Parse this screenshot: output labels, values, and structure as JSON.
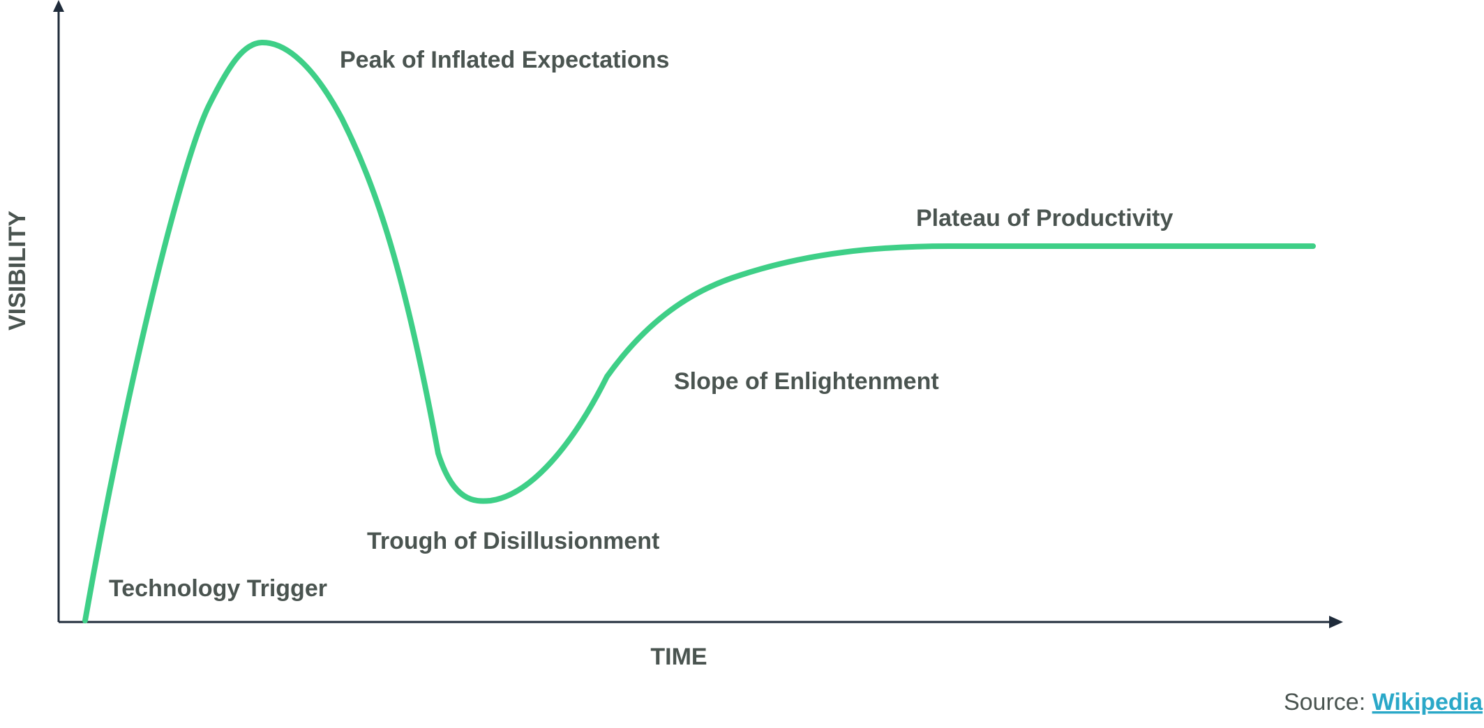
{
  "colors": {
    "curve": "#3ecf87",
    "text": "#4a5450",
    "axis": "#1f2b3a",
    "link": "#2aa8c8"
  },
  "axes": {
    "y_label": "VISIBILITY",
    "x_label": "TIME"
  },
  "phases": {
    "trigger": "Technology Trigger",
    "peak": "Peak of Inflated Expectations",
    "trough": "Trough of Disillusionment",
    "slope": "Slope of Enlightenment",
    "plateau": "Plateau of Productivity"
  },
  "source": {
    "prefix": "Source: ",
    "link_text": "Wikipedia"
  }
}
